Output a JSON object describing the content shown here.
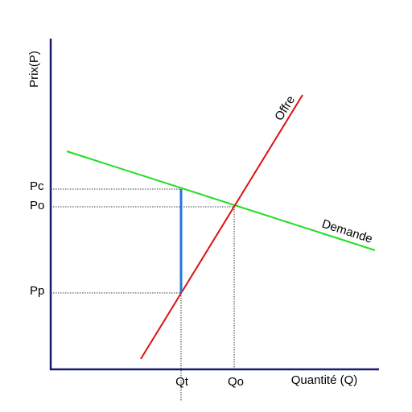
{
  "axes": {
    "y_label": "Prix(P)",
    "x_label": "Quantité (Q)"
  },
  "curves": {
    "supply": "Offre",
    "demand": "Demande"
  },
  "price_levels": [
    "Pc",
    "Po",
    "Pp"
  ],
  "quantity_levels": [
    "Qt",
    "Qo"
  ]
}
